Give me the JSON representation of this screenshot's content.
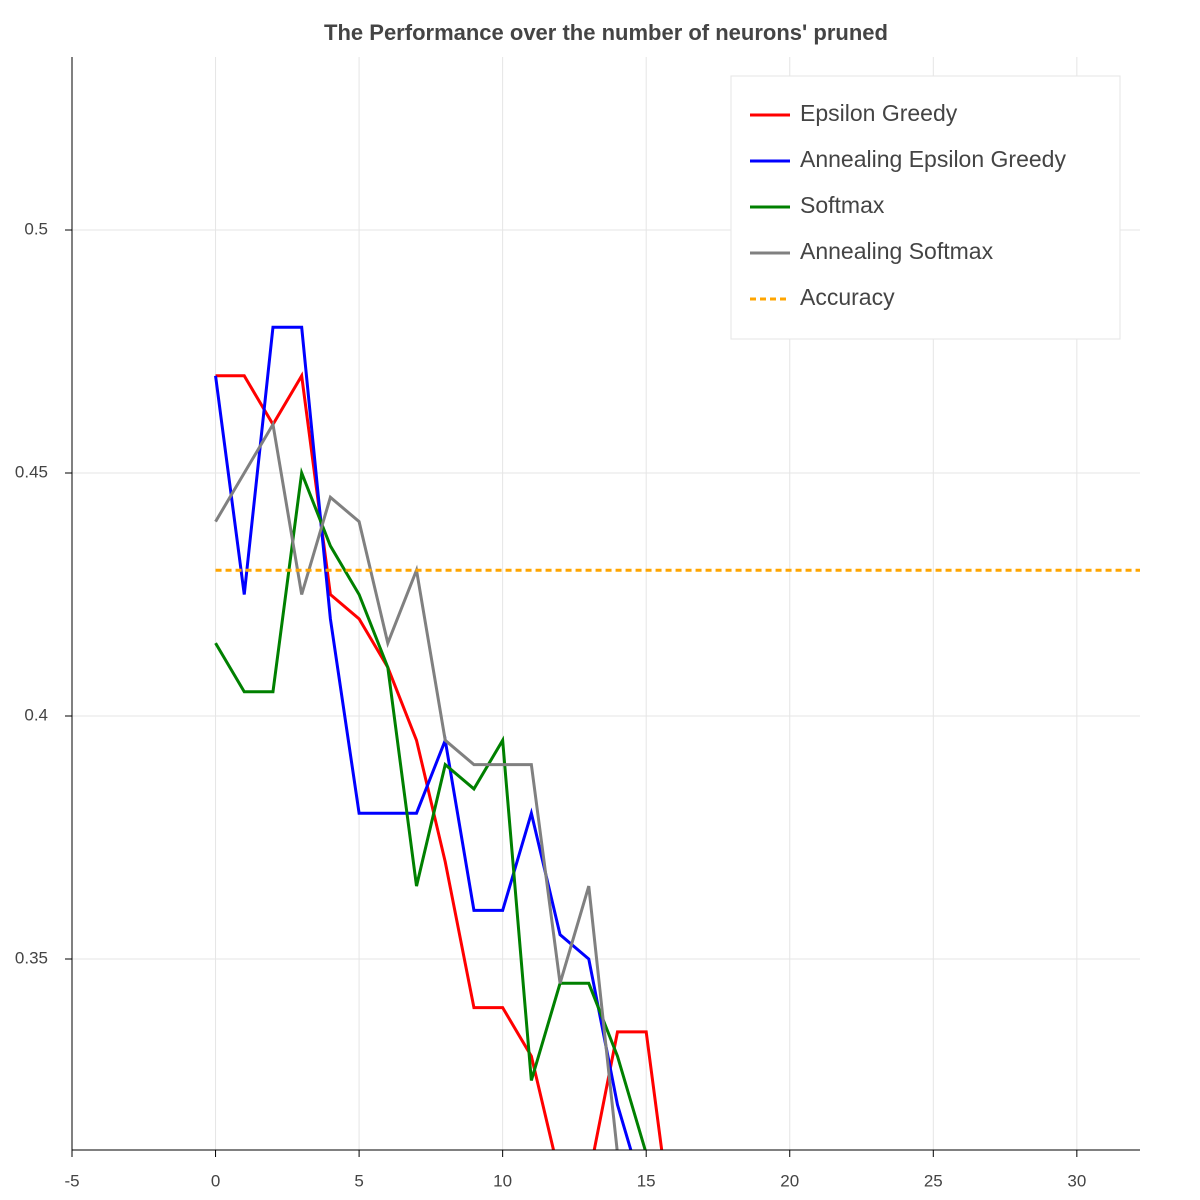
{
  "chart_data": {
    "type": "line",
    "title": "The Performance over the number of neurons' pruned",
    "xlim": [
      -5,
      32.2
    ],
    "ylim": [
      0.3107,
      0.5356
    ],
    "xticks": [
      -5,
      0,
      5,
      10,
      15,
      20,
      25,
      30
    ],
    "yticks": [
      0.35,
      0.4,
      0.45,
      0.5
    ],
    "grid": true,
    "legend": "top-right",
    "series": [
      {
        "name": "Epsilon Greedy",
        "color": "#ff0000",
        "style": "solid",
        "x": [
          0,
          1,
          2,
          3,
          4,
          5,
          6,
          7,
          8,
          9,
          10,
          11,
          12,
          13,
          14,
          15,
          16
        ],
        "values": [
          0.47,
          0.47,
          0.46,
          0.47,
          0.425,
          0.42,
          0.41,
          0.395,
          0.37,
          0.34,
          0.34,
          0.33,
          0.305,
          0.305,
          0.335,
          0.335,
          0.29
        ]
      },
      {
        "name": "Annealing Epsilon Greedy",
        "color": "#0000ff",
        "style": "solid",
        "x": [
          0,
          1,
          2,
          3,
          4,
          5,
          6,
          7,
          8,
          9,
          10,
          11,
          12,
          13,
          14,
          15
        ],
        "values": [
          0.47,
          0.425,
          0.48,
          0.48,
          0.42,
          0.38,
          0.38,
          0.38,
          0.395,
          0.36,
          0.36,
          0.38,
          0.355,
          0.35,
          0.32,
          0.3
        ]
      },
      {
        "name": "Softmax",
        "color": "#008000",
        "style": "solid",
        "x": [
          0,
          1,
          2,
          3,
          4,
          5,
          6,
          7,
          8,
          9,
          10,
          11,
          12,
          13,
          14,
          15
        ],
        "values": [
          0.415,
          0.405,
          0.405,
          0.45,
          0.435,
          0.425,
          0.41,
          0.365,
          0.39,
          0.385,
          0.395,
          0.325,
          0.345,
          0.345,
          0.33,
          0.31
        ]
      },
      {
        "name": "Annealing Softmax",
        "color": "#808080",
        "style": "solid",
        "x": [
          0,
          1,
          2,
          3,
          4,
          5,
          6,
          7,
          8,
          9,
          10,
          11,
          12,
          13,
          14,
          15
        ],
        "values": [
          0.44,
          0.45,
          0.46,
          0.425,
          0.445,
          0.44,
          0.415,
          0.43,
          0.395,
          0.39,
          0.39,
          0.39,
          0.345,
          0.365,
          0.31,
          0.3
        ]
      },
      {
        "name": "Accuracy",
        "color": "#ffa500",
        "style": "dashed",
        "x": [
          0,
          35
        ],
        "values": [
          0.43,
          0.43
        ]
      }
    ]
  }
}
